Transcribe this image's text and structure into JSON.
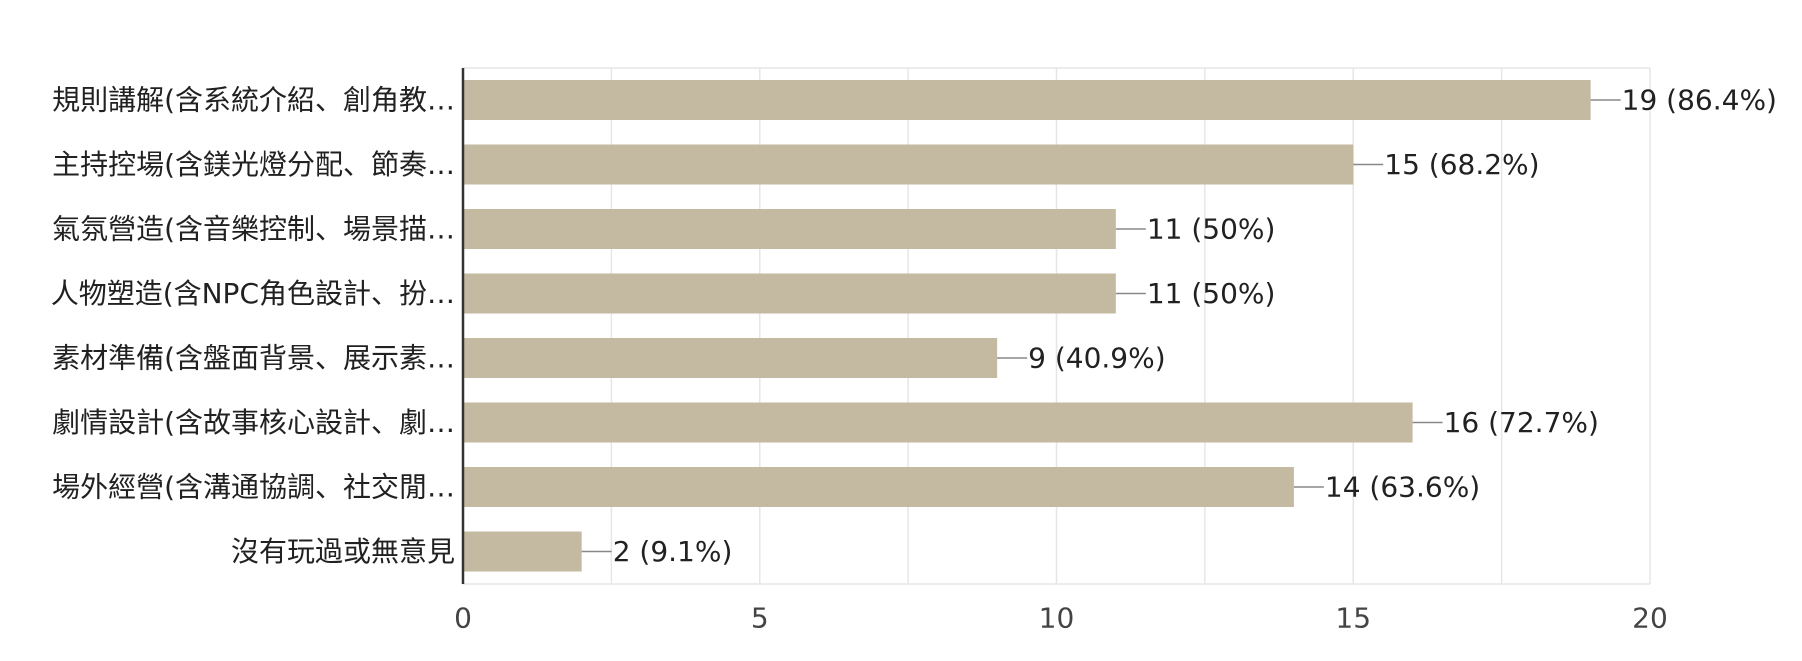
{
  "chart_data": {
    "type": "bar",
    "orientation": "horizontal",
    "categories": [
      "規則講解(含系統介紹、創角教…",
      "主持控場(含鎂光燈分配、節奏…",
      "氣氛營造(含音樂控制、場景描…",
      "人物塑造(含NPC角色設計、扮…",
      "素材準備(含盤面背景、展示素…",
      "劇情設計(含故事核心設計、劇…",
      "場外經營(含溝通協調、社交閒…",
      "沒有玩過或無意見"
    ],
    "values": [
      19,
      15,
      11,
      11,
      9,
      16,
      14,
      2
    ],
    "value_labels": [
      "19 (86.4%)",
      "15 (68.2%)",
      "11 (50%)",
      "11 (50%)",
      "9 (40.9%)",
      "16 (72.7%)",
      "14 (63.6%)",
      "2 (9.1%)"
    ],
    "xlim": [
      0,
      20
    ],
    "xticks": [
      0,
      5,
      10,
      15,
      20
    ],
    "grid": true,
    "bar_color": "#c4baa2"
  }
}
